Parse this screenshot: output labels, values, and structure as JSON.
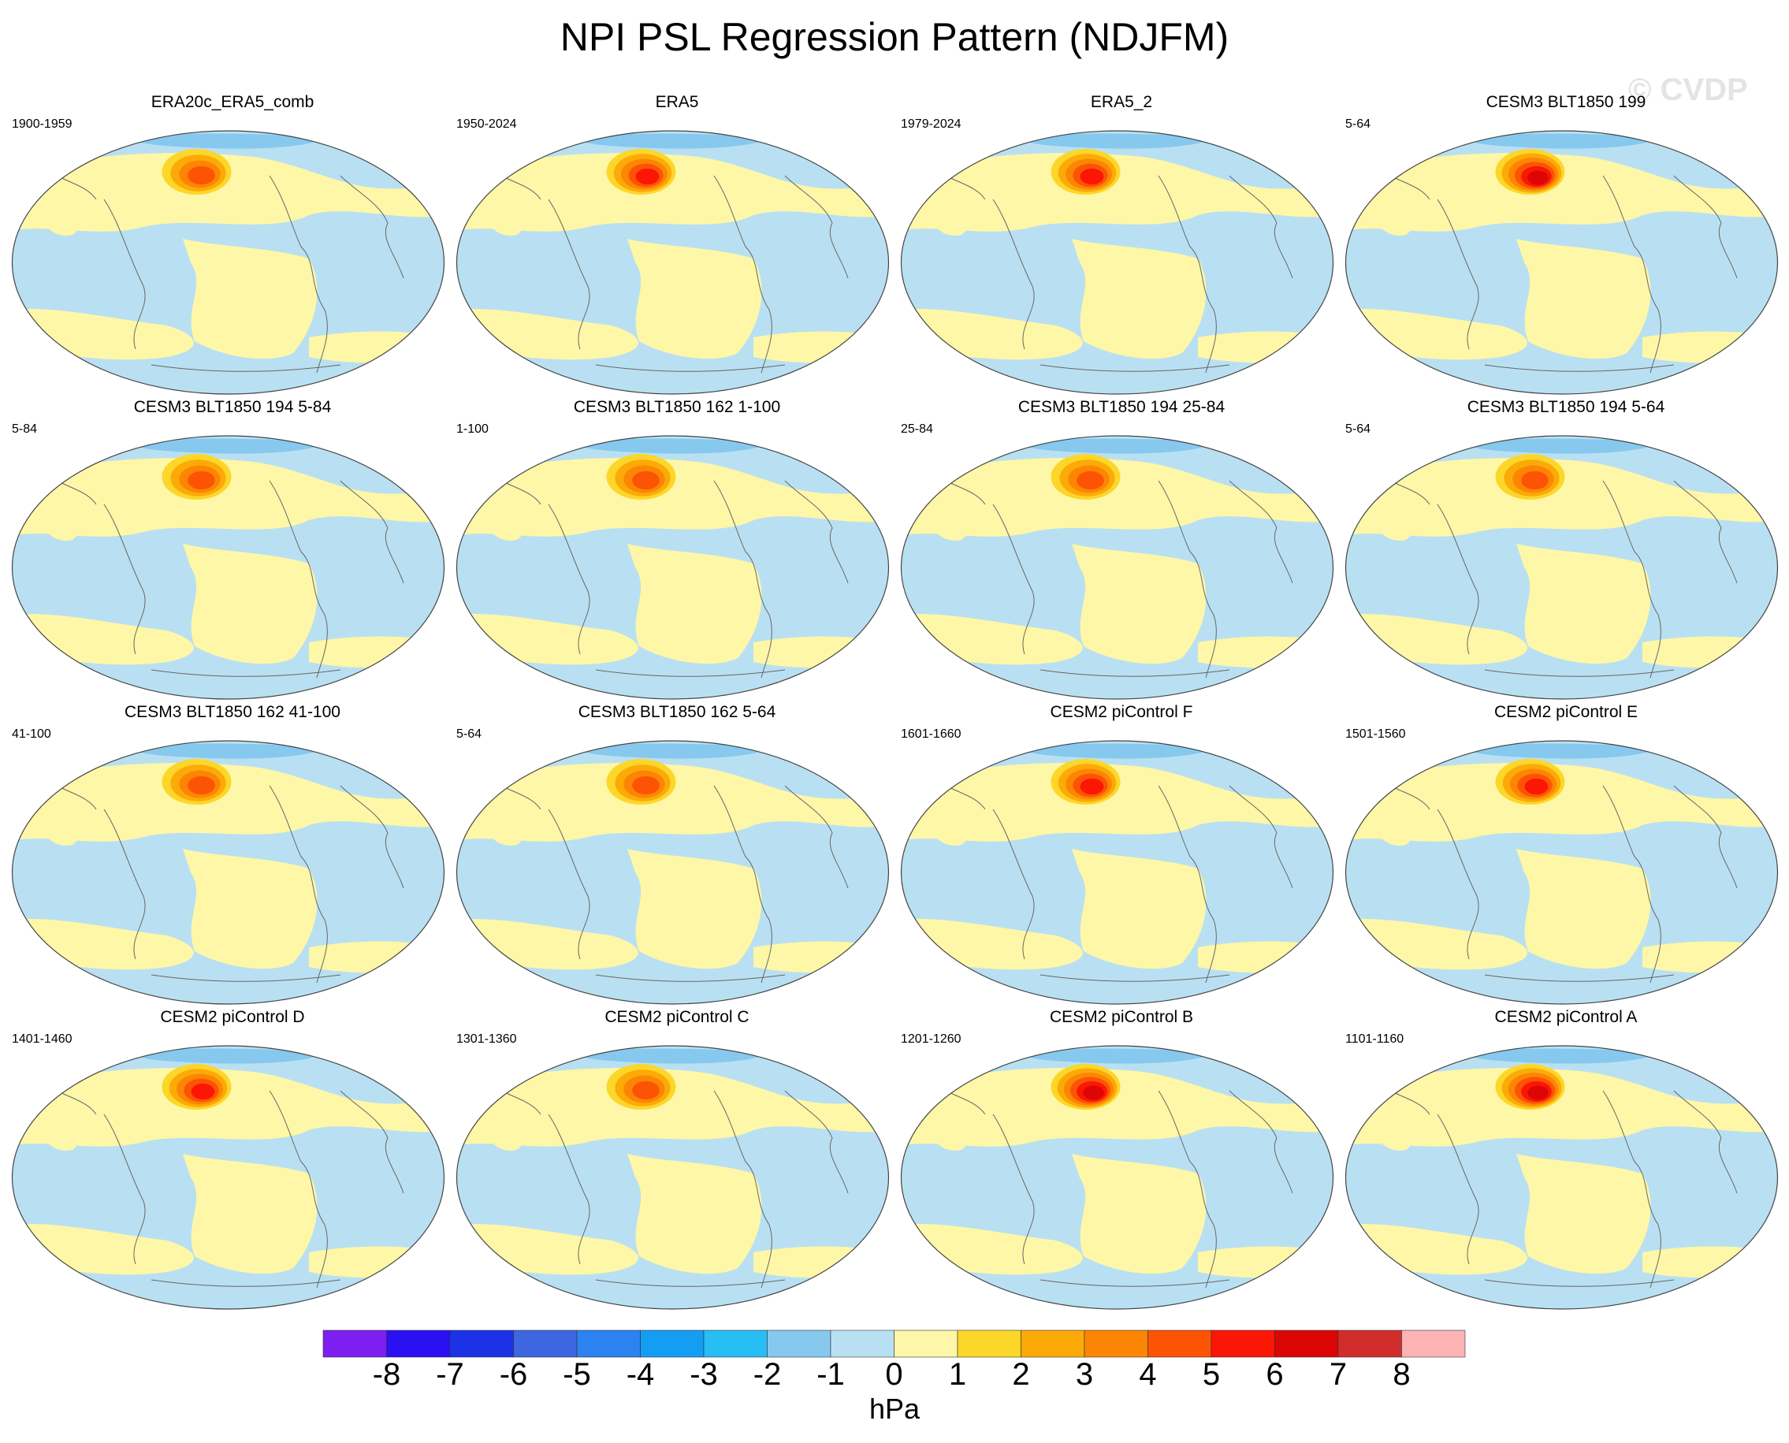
{
  "title": "NPI PSL Regression Pattern (NDJFM)",
  "watermark": "© CVDP",
  "chart_data": {
    "type": "heatmap",
    "title": "NPI PSL Regression Pattern (NDJFM)",
    "projection": "global map",
    "variable": "PSL",
    "units": "hPa",
    "colorbar": {
      "levels": [
        -8,
        -7,
        -6,
        -5,
        -4,
        -3,
        -2,
        -1,
        0,
        1,
        2,
        3,
        4,
        5,
        6,
        7,
        8
      ],
      "colors": [
        "#7d1ff0",
        "#2a10f2",
        "#1c32e6",
        "#3d66e0",
        "#2c82f0",
        "#139ef4",
        "#27bdf5",
        "#87c9ee",
        "#b9e0f2",
        "#fef7a7",
        "#fdd62a",
        "#fcaa08",
        "#fc8604",
        "#fc5404",
        "#fb1605",
        "#dc0606",
        "#d12d2d",
        "#fcb3b3"
      ]
    },
    "panels": [
      {
        "title": "ERA20c_ERA5_comb",
        "period": "1900-1959",
        "max": 4
      },
      {
        "title": "ERA5",
        "period": "1950-2024",
        "max": 5
      },
      {
        "title": "ERA5_2",
        "period": "1979-2024",
        "max": 5
      },
      {
        "title": "CESM3 BLT1850 199",
        "period": "5-64",
        "max": 6
      },
      {
        "title": "CESM3 BLT1850 194 5-84",
        "period": "5-84",
        "max": 4
      },
      {
        "title": "CESM3 BLT1850 162 1-100",
        "period": "1-100",
        "max": 4
      },
      {
        "title": "CESM3 BLT1850 194 25-84",
        "period": "25-84",
        "max": 4
      },
      {
        "title": "CESM3 BLT1850 194 5-64",
        "period": "5-64",
        "max": 4
      },
      {
        "title": "CESM3 BLT1850 162 41-100",
        "period": "41-100",
        "max": 4
      },
      {
        "title": "CESM3 BLT1850 162 5-64",
        "period": "5-64",
        "max": 4
      },
      {
        "title": "CESM2 piControl F",
        "period": "1601-1660",
        "max": 5
      },
      {
        "title": "CESM2 piControl E",
        "period": "1501-1560",
        "max": 5
      },
      {
        "title": "CESM2 piControl D",
        "period": "1401-1460",
        "max": 5
      },
      {
        "title": "CESM2 piControl C",
        "period": "1301-1360",
        "max": 4
      },
      {
        "title": "CESM2 piControl B",
        "period": "1201-1260",
        "max": 6
      },
      {
        "title": "CESM2 piControl A",
        "period": "1101-1160",
        "max": 6
      }
    ]
  }
}
